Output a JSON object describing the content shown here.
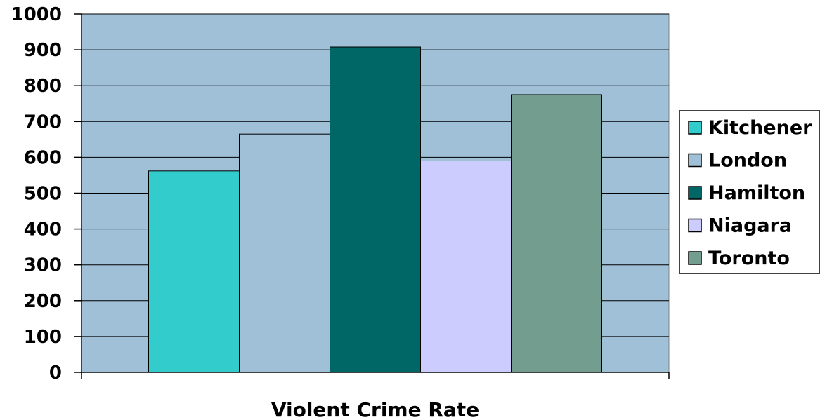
{
  "chart_data": {
    "type": "bar",
    "xlabel": "Violent Crime Rate",
    "ylabel": "",
    "ylim": [
      0,
      1000
    ],
    "yticks": [
      0,
      100,
      200,
      300,
      400,
      500,
      600,
      700,
      800,
      900,
      1000
    ],
    "grid": true,
    "legend_position": "right",
    "plot_background": "#a0c0d8",
    "series": [
      {
        "name": "Kitchener",
        "value": 562,
        "color": "#33cccc"
      },
      {
        "name": "London",
        "value": 665,
        "color": "#a0c0d8"
      },
      {
        "name": "Hamilton",
        "value": 908,
        "color": "#006666"
      },
      {
        "name": "Niagara",
        "value": 590,
        "color": "#ccccff"
      },
      {
        "name": "Toronto",
        "value": 775,
        "color": "#739e8f"
      }
    ]
  }
}
